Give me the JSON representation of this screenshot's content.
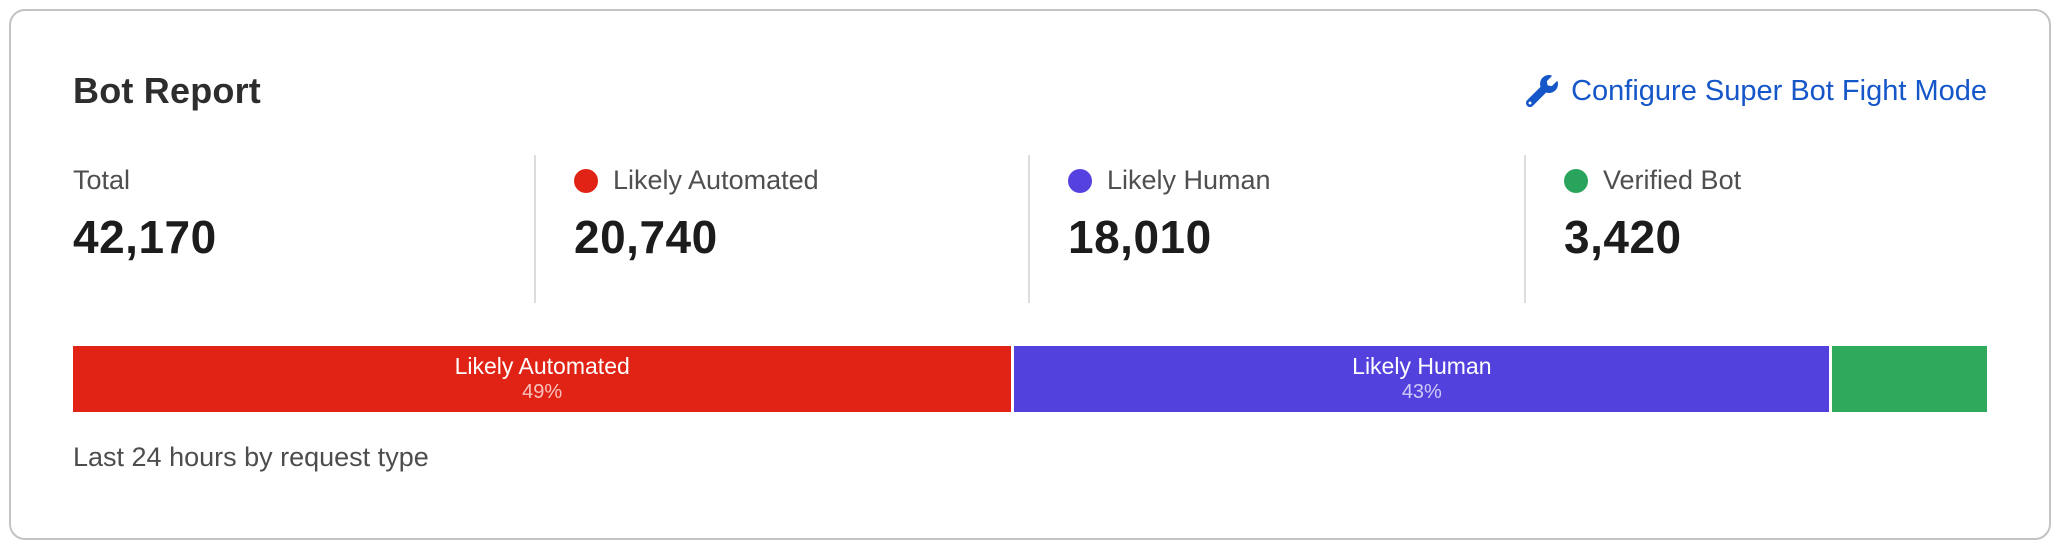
{
  "card": {
    "title": "Bot Report",
    "configure_link": {
      "label": "Configure Super Bot Fight Mode",
      "icon": "wrench-icon",
      "color": "#1556c8"
    },
    "stats": [
      {
        "label": "Total",
        "value": "42,170",
        "dot_color": null
      },
      {
        "label": "Likely Automated",
        "value": "20,740",
        "dot_color": "#e02314"
      },
      {
        "label": "Likely Human",
        "value": "18,010",
        "dot_color": "#5441e0"
      },
      {
        "label": "Verified Bot",
        "value": "3,420",
        "dot_color": "#2aa45c"
      }
    ],
    "footer": "Last 24 hours by request type"
  },
  "chart_data": {
    "type": "bar",
    "subtype": "stacked-horizontal",
    "title": "Bot Report",
    "caption": "Last 24 hours by request type",
    "total": 42170,
    "segments": [
      {
        "name": "Likely Automated",
        "value": 20740,
        "percent_label": "49%",
        "color": "#e02314",
        "show_label": true
      },
      {
        "name": "Likely Human",
        "value": 18010,
        "percent_label": "43%",
        "color": "#5241dd",
        "show_label": true
      },
      {
        "name": "Verified Bot",
        "value": 3420,
        "percent_label": "",
        "color": "#2fa95c",
        "show_label": false
      }
    ],
    "legend_position": "top",
    "grid": false
  }
}
